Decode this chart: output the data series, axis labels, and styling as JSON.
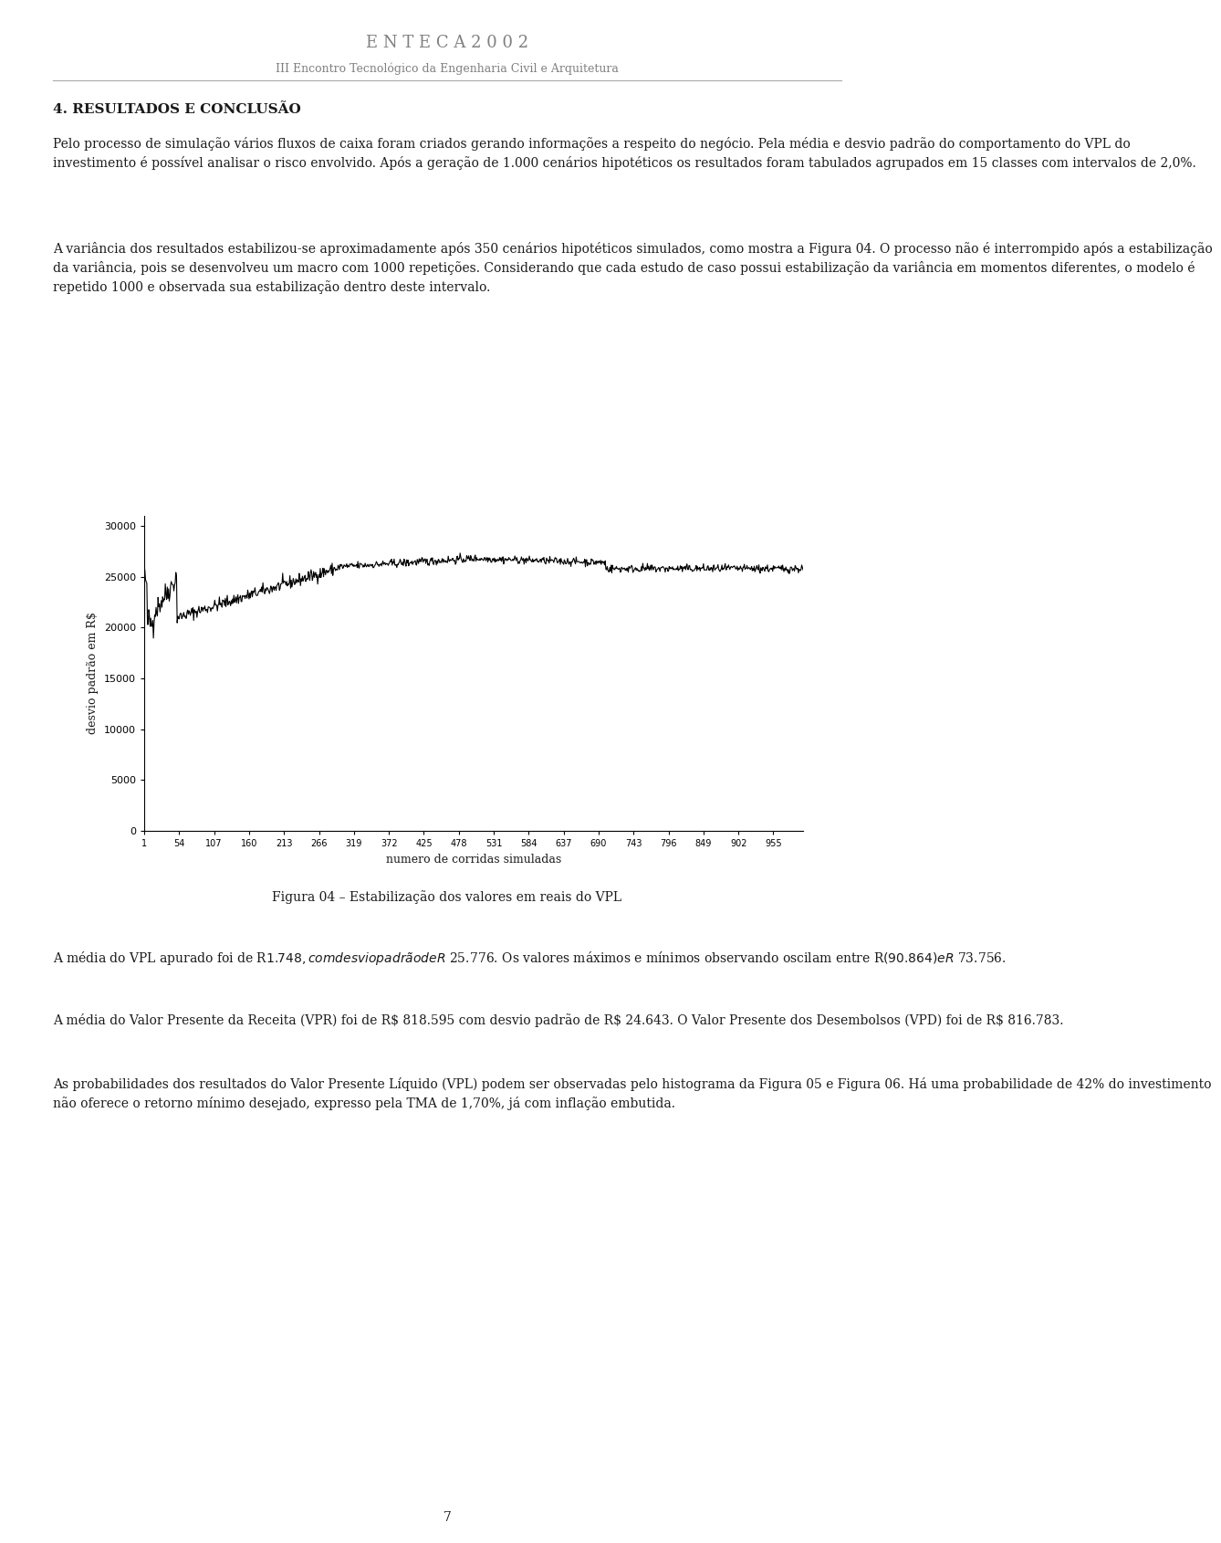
{
  "header_title": "E N T E C A 2 0 0 2",
  "header_subtitle": "III Encontro Tecnológico da Engenharia Civil e Arquitetura",
  "section_title": "4. RESULTADOS E CONCLUSÃO",
  "paragraphs": [
    "Pelo processo de simulação vários fluxos de caixa foram criados gerando informações a respeito do negócio. Pela média e desvio padrão do comportamento do VPL do\ninvestimento é possível analisar o risco envolvido. Após a geração de 1.000 cenários hipotéticos os resultados foram tabulados agrupados em 15 classes com intervalos de 2,0%.",
    "A variância dos resultados estabilizou-se aproximadamente após 350 cenários hipotéticos simulados, como mostra a Figura 04. O processo não é interrompido após a estabilização\nda variância, pois se desenvolveu um macro com 1000 repetições. Considerando que cada estudo de caso possui estabilização da variância em momentos diferentes, o modelo é\nrepetido 1000 e observada sua estabilização dentro deste intervalo."
  ],
  "figure_caption": "Figura 04 – Estabilização dos valores em reais do VPL",
  "paragraphs_after": [
    "A média do VPL apurado foi de R$ 1.748, com desvio padrão de R$ 25.776. Os valores máximos e mínimos observando oscilam entre R$ (90.864) e R$ 73.756.",
    "A média do Valor Presente da Receita (VPR) foi de R$ 818.595 com desvio padrão de R$ 24.643. O Valor Presente dos Desembolsos (VPD) foi de R$ 816.783.",
    "As probabilidades dos resultados do Valor Presente Líquido (VPL) podem ser observadas pelo histograma da Figura 05 e Figura 06. Há uma probabilidade de 42% do investimento\nnão oferece o retorno mínimo desejado, expresso pela TMA de 1,70%, já com inflação embutida."
  ],
  "page_number": "7",
  "chart": {
    "ylabel": "desvio padrão em R$",
    "xlabel": "numero de corridas simuladas",
    "yticks": [
      0,
      5000,
      10000,
      15000,
      20000,
      25000,
      30000
    ],
    "xtick_labels": [
      "1",
      "54",
      "107",
      "160",
      "213",
      "266",
      "319",
      "372",
      "425",
      "478",
      "531",
      "584",
      "637",
      "690",
      "743",
      "796",
      "849",
      "902",
      "955"
    ],
    "xtick_positions": [
      1,
      54,
      107,
      160,
      213,
      266,
      319,
      372,
      425,
      478,
      531,
      584,
      637,
      690,
      743,
      796,
      849,
      902,
      955
    ],
    "ylim": [
      0,
      31000
    ],
    "xlim": [
      1,
      1000
    ],
    "line_color": "#000000",
    "line_width": 0.8
  },
  "text_color": "#1a1a1a",
  "bg_color": "#ffffff",
  "header_color": "#808080",
  "font_size_header": 13,
  "font_size_subtitle": 9,
  "font_size_section": 11,
  "font_size_body": 10,
  "font_size_caption": 10
}
